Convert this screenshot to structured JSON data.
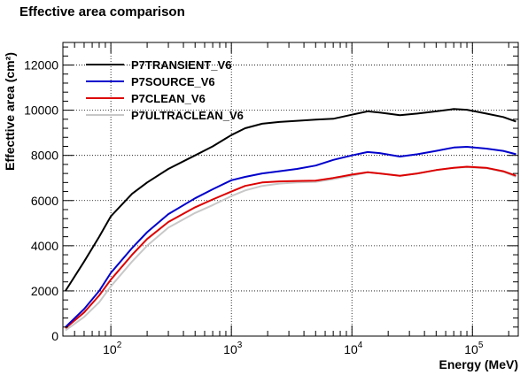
{
  "chart_data": {
    "type": "line",
    "title": "Effective area comparison",
    "xlabel": "Energy (MeV)",
    "ylabel": "Effecttive area (cm²)",
    "xscale": "log",
    "xlim": [
      40,
      240000
    ],
    "ylim": [
      0,
      13000
    ],
    "x_ticks": [
      {
        "value": 100,
        "base": "10",
        "exp": "2"
      },
      {
        "value": 1000,
        "base": "10",
        "exp": "3"
      },
      {
        "value": 10000,
        "base": "10",
        "exp": "4"
      },
      {
        "value": 100000,
        "base": "10",
        "exp": "5"
      }
    ],
    "y_ticks": [
      0,
      2000,
      4000,
      6000,
      8000,
      10000,
      12000
    ],
    "grid": true,
    "legend_position": "top-left",
    "series": [
      {
        "name": "P7TRANSIENT_V6",
        "color": "#000000",
        "x": [
          42,
          60,
          80,
          100,
          150,
          200,
          300,
          500,
          700,
          1000,
          1300,
          1800,
          2500,
          3500,
          5000,
          7000,
          10000,
          13500,
          17000,
          25000,
          35000,
          50000,
          70000,
          90000,
          130000,
          180000,
          230000
        ],
        "y": [
          2000,
          3300,
          4400,
          5300,
          6300,
          6800,
          7400,
          8000,
          8400,
          8900,
          9200,
          9400,
          9480,
          9530,
          9580,
          9620,
          9800,
          9950,
          9900,
          9780,
          9850,
          9950,
          10050,
          10020,
          9850,
          9700,
          9500
        ]
      },
      {
        "name": "P7SOURCE_V6",
        "color": "#0000cc",
        "x": [
          42,
          60,
          80,
          100,
          150,
          200,
          300,
          500,
          700,
          1000,
          1300,
          1800,
          2500,
          3500,
          5000,
          7000,
          10000,
          13500,
          17000,
          25000,
          35000,
          50000,
          70000,
          90000,
          130000,
          180000,
          230000
        ],
        "y": [
          400,
          1200,
          2000,
          2800,
          3900,
          4600,
          5400,
          6100,
          6500,
          6900,
          7050,
          7200,
          7300,
          7400,
          7550,
          7800,
          8000,
          8150,
          8100,
          7950,
          8050,
          8200,
          8350,
          8380,
          8300,
          8200,
          8050
        ]
      },
      {
        "name": "P7CLEAN_V6",
        "color": "#dd0000",
        "x": [
          42,
          60,
          80,
          100,
          150,
          200,
          300,
          500,
          700,
          1000,
          1300,
          1800,
          2500,
          3500,
          5000,
          7000,
          10000,
          13500,
          17000,
          25000,
          35000,
          50000,
          70000,
          90000,
          130000,
          180000,
          230000
        ],
        "y": [
          350,
          1050,
          1800,
          2500,
          3600,
          4300,
          5050,
          5700,
          6050,
          6400,
          6650,
          6800,
          6850,
          6870,
          6880,
          7000,
          7150,
          7250,
          7200,
          7100,
          7200,
          7350,
          7450,
          7500,
          7450,
          7300,
          7100
        ]
      },
      {
        "name": "P7ULTRACLEAN_V6",
        "color": "#c8c8c8",
        "x": [
          42,
          60,
          80,
          100,
          150,
          200,
          300,
          500,
          700,
          1000,
          1300,
          1800,
          2500,
          3500,
          5000,
          7000,
          10000,
          13500,
          17000,
          25000,
          35000,
          50000,
          70000,
          90000,
          130000,
          180000,
          230000
        ],
        "y": [
          250,
          850,
          1500,
          2200,
          3300,
          4000,
          4800,
          5450,
          5800,
          6200,
          6450,
          6650,
          6750,
          6800,
          6830,
          6950,
          7100,
          7250,
          7200,
          7100,
          7200,
          7350,
          7450,
          7480,
          7430,
          7280,
          7050
        ]
      }
    ]
  }
}
